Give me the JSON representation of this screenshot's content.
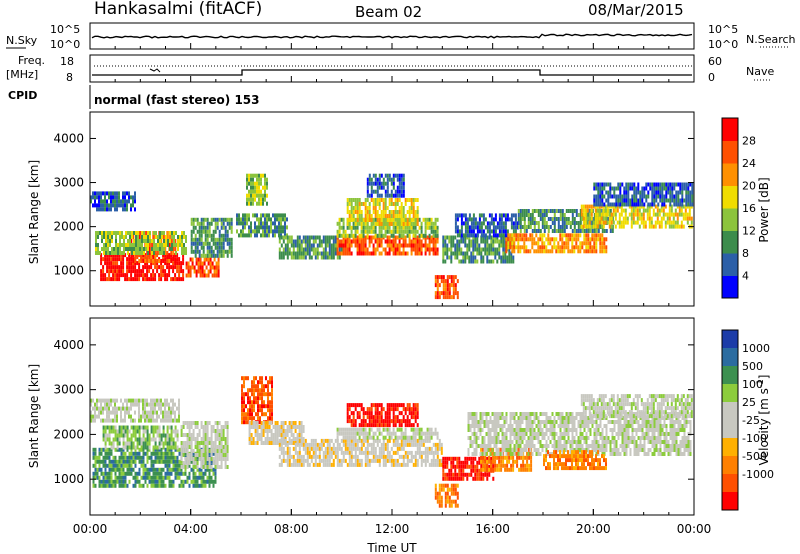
{
  "header": {
    "station": "Hankasalmi (fitACF)",
    "beam": "Beam 02",
    "date": "08/Mar/2015"
  },
  "noise_panel": {
    "left_label": "N.Sky",
    "right_label": "N.Search",
    "left_ticks": [
      "10^5",
      "10^0"
    ],
    "right_ticks": [
      "10^5",
      "10^0"
    ]
  },
  "freq_panel": {
    "left_label_1": "Freq.",
    "left_label_2": "[MHz]",
    "right_label": "Nave",
    "left_ticks": [
      "18",
      "8"
    ],
    "right_ticks": [
      "60",
      "0"
    ]
  },
  "cpid_panel": {
    "label": "CPID",
    "program": "normal (fast stereo) 153"
  },
  "colors": {
    "power_scale": [
      "#0000ff",
      "#2b5fa8",
      "#3c8c4c",
      "#8cc43c",
      "#f0dc00",
      "#ff9000",
      "#ff5000",
      "#ff0000"
    ],
    "velocity_scale": [
      "#1c3ca8",
      "#2b6ca0",
      "#3c9050",
      "#8ccc3c",
      "#c8c8c0",
      "#c8c8c0",
      "#ffb000",
      "#ff8000",
      "#ff5000",
      "#ff0000"
    ],
    "ground_scatter": "#a8a8a8"
  },
  "chart_data": [
    {
      "type": "heatmap",
      "panel": "power",
      "ylabel": "Slant Range [km]",
      "yticks": [
        "1000",
        "2000",
        "3000",
        "4000"
      ],
      "ylim": [
        200,
        4600
      ],
      "colorbar": {
        "label": "Power [dB]",
        "ticks": [
          "4",
          "8",
          "12",
          "16",
          "20",
          "24",
          "28"
        ],
        "range": [
          0,
          32
        ]
      },
      "regions": [
        {
          "x0": 0.4,
          "x1": 3.7,
          "y0": 850,
          "y1": 1400,
          "level": 7
        },
        {
          "x0": 1.6,
          "x1": 3.4,
          "y0": 1200,
          "y1": 1900,
          "level": 6
        },
        {
          "x0": 0.2,
          "x1": 3.8,
          "y0": 1400,
          "y1": 1900,
          "level": 3
        },
        {
          "x0": 0.0,
          "x1": 1.8,
          "y0": 2400,
          "y1": 2800,
          "level": 1
        },
        {
          "x0": 3.8,
          "x1": 5.1,
          "y0": 850,
          "y1": 1300,
          "level": 6
        },
        {
          "x0": 4.0,
          "x1": 5.6,
          "y0": 1300,
          "y1": 2200,
          "level": 2
        },
        {
          "x0": 5.8,
          "x1": 7.8,
          "y0": 1800,
          "y1": 2300,
          "level": 2
        },
        {
          "x0": 6.2,
          "x1": 7.0,
          "y0": 2500,
          "y1": 3200,
          "level": 3
        },
        {
          "x0": 7.5,
          "x1": 10.0,
          "y0": 1300,
          "y1": 1800,
          "level": 2
        },
        {
          "x0": 9.8,
          "x1": 13.8,
          "y0": 1400,
          "y1": 1800,
          "level": 6
        },
        {
          "x0": 9.8,
          "x1": 13.8,
          "y0": 1800,
          "y1": 2200,
          "level": 3
        },
        {
          "x0": 10.2,
          "x1": 13.0,
          "y0": 2100,
          "y1": 2650,
          "level": 4
        },
        {
          "x0": 11.0,
          "x1": 12.5,
          "y0": 2700,
          "y1": 3200,
          "level": 1
        },
        {
          "x0": 13.7,
          "x1": 14.6,
          "y0": 400,
          "y1": 900,
          "level": 6
        },
        {
          "x0": 14.0,
          "x1": 16.8,
          "y0": 1200,
          "y1": 1800,
          "level": 2
        },
        {
          "x0": 14.5,
          "x1": 17.0,
          "y0": 1800,
          "y1": 2300,
          "level": 1
        },
        {
          "x0": 16.5,
          "x1": 20.5,
          "y0": 1450,
          "y1": 1850,
          "level": 5
        },
        {
          "x0": 17.0,
          "x1": 20.8,
          "y0": 1900,
          "y1": 2400,
          "level": 2
        },
        {
          "x0": 19.5,
          "x1": 23.9,
          "y0": 2000,
          "y1": 2500,
          "level": 4
        },
        {
          "x0": 20.0,
          "x1": 23.9,
          "y0": 2500,
          "y1": 3000,
          "level": 1
        }
      ]
    },
    {
      "type": "heatmap",
      "panel": "velocity",
      "xlabel": "Time UT",
      "xticks": [
        "00:00",
        "04:00",
        "08:00",
        "12:00",
        "16:00",
        "20:00",
        "00:00"
      ],
      "xlim": [
        0,
        24
      ],
      "ylabel": "Slant Range [km]",
      "yticks": [
        "1000",
        "2000",
        "3000",
        "4000"
      ],
      "ylim": [
        200,
        4600
      ],
      "colorbar": {
        "label": "Velocity [m s^-1]",
        "ticks": [
          "1000",
          "500",
          "100",
          "25",
          "-25",
          "-100",
          "-500",
          "-1000"
        ],
        "range": [
          -1200,
          1200
        ]
      },
      "regions": [
        {
          "x0": 0.1,
          "x1": 5.0,
          "y0": 850,
          "y1": 1700,
          "level": 2
        },
        {
          "x0": 0.5,
          "x1": 3.5,
          "y0": 1700,
          "y1": 2200,
          "level": 3
        },
        {
          "x0": 0.0,
          "x1": 3.5,
          "y0": 2300,
          "y1": 2800,
          "level": 4
        },
        {
          "x0": 3.6,
          "x1": 5.5,
          "y0": 1300,
          "y1": 2300,
          "level": 4
        },
        {
          "x0": 6.0,
          "x1": 7.2,
          "y0": 2300,
          "y1": 3300,
          "level": 8
        },
        {
          "x0": 6.3,
          "x1": 8.5,
          "y0": 1800,
          "y1": 2300,
          "level": 5
        },
        {
          "x0": 7.5,
          "x1": 14.0,
          "y0": 1350,
          "y1": 1900,
          "level": 5
        },
        {
          "x0": 10.2,
          "x1": 13.0,
          "y0": 2200,
          "y1": 2700,
          "level": 9
        },
        {
          "x0": 9.8,
          "x1": 13.8,
          "y0": 1900,
          "y1": 2150,
          "level": 4
        },
        {
          "x0": 13.7,
          "x1": 14.6,
          "y0": 400,
          "y1": 900,
          "level": 7
        },
        {
          "x0": 14.0,
          "x1": 16.0,
          "y0": 1000,
          "y1": 1500,
          "level": 9
        },
        {
          "x0": 15.5,
          "x1": 17.5,
          "y0": 1200,
          "y1": 1700,
          "level": 7
        },
        {
          "x0": 15.0,
          "x1": 23.9,
          "y0": 1600,
          "y1": 2500,
          "level": 4
        },
        {
          "x0": 18.0,
          "x1": 20.5,
          "y0": 1250,
          "y1": 1650,
          "level": 7
        },
        {
          "x0": 19.5,
          "x1": 23.9,
          "y0": 2400,
          "y1": 2900,
          "level": 4
        }
      ]
    }
  ]
}
